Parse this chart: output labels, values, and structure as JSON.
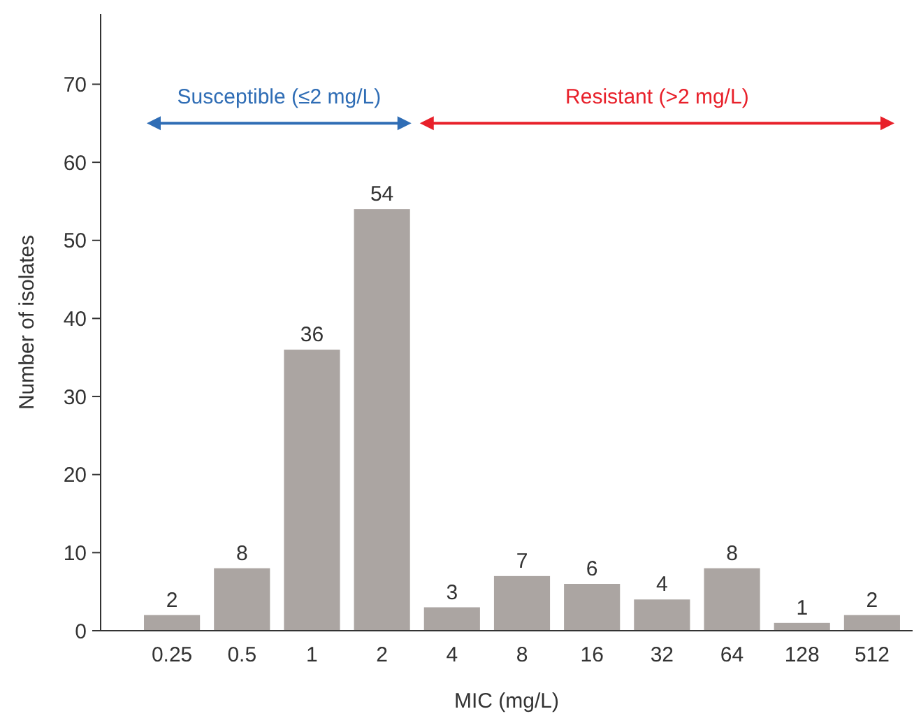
{
  "chart_data": {
    "type": "bar",
    "xlabel": "MIC (mg/L)",
    "ylabel": "Number of isolates",
    "categories": [
      "0.25",
      "0.5",
      "1",
      "2",
      "4",
      "8",
      "16",
      "32",
      "64",
      "128",
      "512"
    ],
    "values": [
      2,
      8,
      36,
      54,
      3,
      7,
      6,
      4,
      8,
      1,
      2
    ],
    "color": "#aba5a2",
    "data_labels": true,
    "ylim": [
      0,
      79
    ],
    "yticks": [
      0,
      10,
      20,
      30,
      40,
      50,
      60,
      70
    ],
    "grid": false,
    "annotations": [
      "Susceptible (≤2 mg/L)",
      "Resistant (>2 mg/L)"
    ]
  }
}
